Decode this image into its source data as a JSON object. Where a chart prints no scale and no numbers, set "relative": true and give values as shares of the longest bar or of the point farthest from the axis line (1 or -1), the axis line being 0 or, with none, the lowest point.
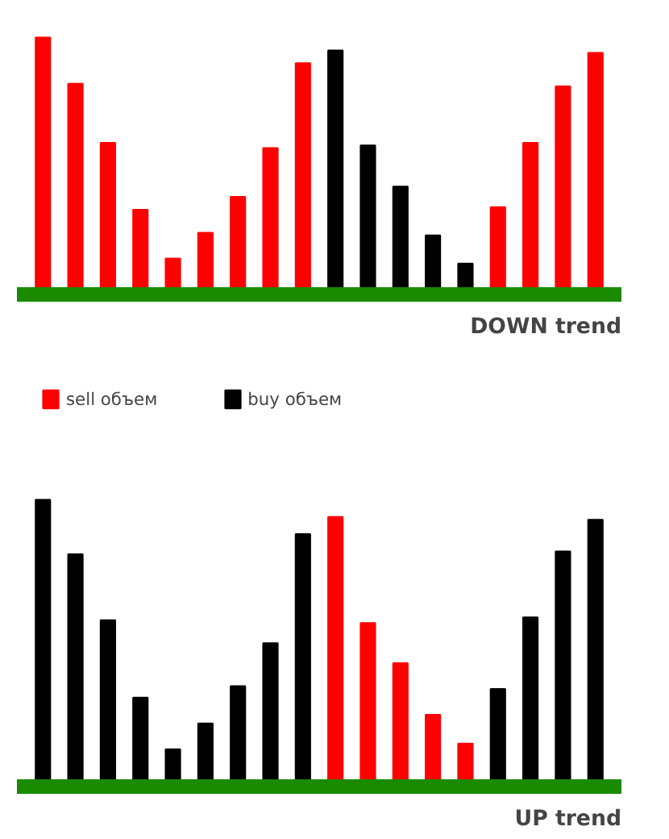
{
  "chart_data": [
    {
      "type": "bar",
      "title": "DOWN trend",
      "relative": true,
      "categories": [
        null,
        null,
        null,
        null,
        null,
        null,
        null,
        null,
        null,
        null,
        null,
        null,
        null,
        null,
        null,
        null,
        null,
        null
      ],
      "values": [
        1,
        0.82,
        0.59,
        0.33,
        0.14,
        0.24,
        0.38,
        0.57,
        0.9,
        0.95,
        0.58,
        0.42,
        0.23,
        0.12,
        0.34,
        0.59,
        0.81,
        0.94
      ],
      "colors": [
        "#ff0000",
        "#ff0000",
        "#ff0000",
        "#ff0000",
        "#ff0000",
        "#ff0000",
        "#ff0000",
        "#ff0000",
        "#ff0000",
        "#000000",
        "#000000",
        "#000000",
        "#000000",
        "#000000",
        "#ff0000",
        "#ff0000",
        "#ff0000",
        "#ff0000"
      ]
    },
    {
      "type": "other",
      "legend": "top left",
      "series": [
        {
          "name": "sell объем",
          "color": "#ff0000"
        },
        {
          "name": "buy объем",
          "color": "#000000"
        }
      ]
    },
    {
      "type": "bar",
      "title": "UP trend",
      "relative": true,
      "categories": [
        null,
        null,
        null,
        null,
        null,
        null,
        null,
        null,
        null,
        null,
        null,
        null,
        null,
        null,
        null,
        null,
        null,
        null
      ],
      "values": [
        1,
        0.81,
        0.58,
        0.31,
        0.13,
        0.22,
        0.35,
        0.5,
        0.88,
        0.94,
        0.57,
        0.43,
        0.25,
        0.15,
        0.34,
        0.59,
        0.82,
        0.93
      ],
      "colors": [
        "#000000",
        "#000000",
        "#000000",
        "#000000",
        "#000000",
        "#000000",
        "#000000",
        "#000000",
        "#000000",
        "#ff0000",
        "#ff0000",
        "#ff0000",
        "#ff0000",
        "#ff0000",
        "#000000",
        "#000000",
        "#000000",
        "#000000"
      ]
    }
  ]
}
